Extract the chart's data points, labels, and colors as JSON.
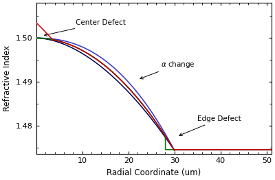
{
  "xlabel": "Radial Coordinate (um)",
  "ylabel": "Refractive Index",
  "xlim": [
    0,
    51
  ],
  "ylim": [
    1.4735,
    1.508
  ],
  "yticks": [
    1.48,
    1.49,
    1.5
  ],
  "xticks": [
    10,
    20,
    30,
    40,
    50
  ],
  "n_core": 1.5,
  "n_clad": 1.4745,
  "r_core": 30.0,
  "background_color": "#ffffff",
  "color_black": "#111111",
  "color_red": "#cc0000",
  "color_green": "#007700",
  "color_blue": "#3333cc",
  "color_darkblue": "#000055",
  "annotation_fontsize": 7.5,
  "label_fontsize": 8.5,
  "tick_fontsize": 8
}
